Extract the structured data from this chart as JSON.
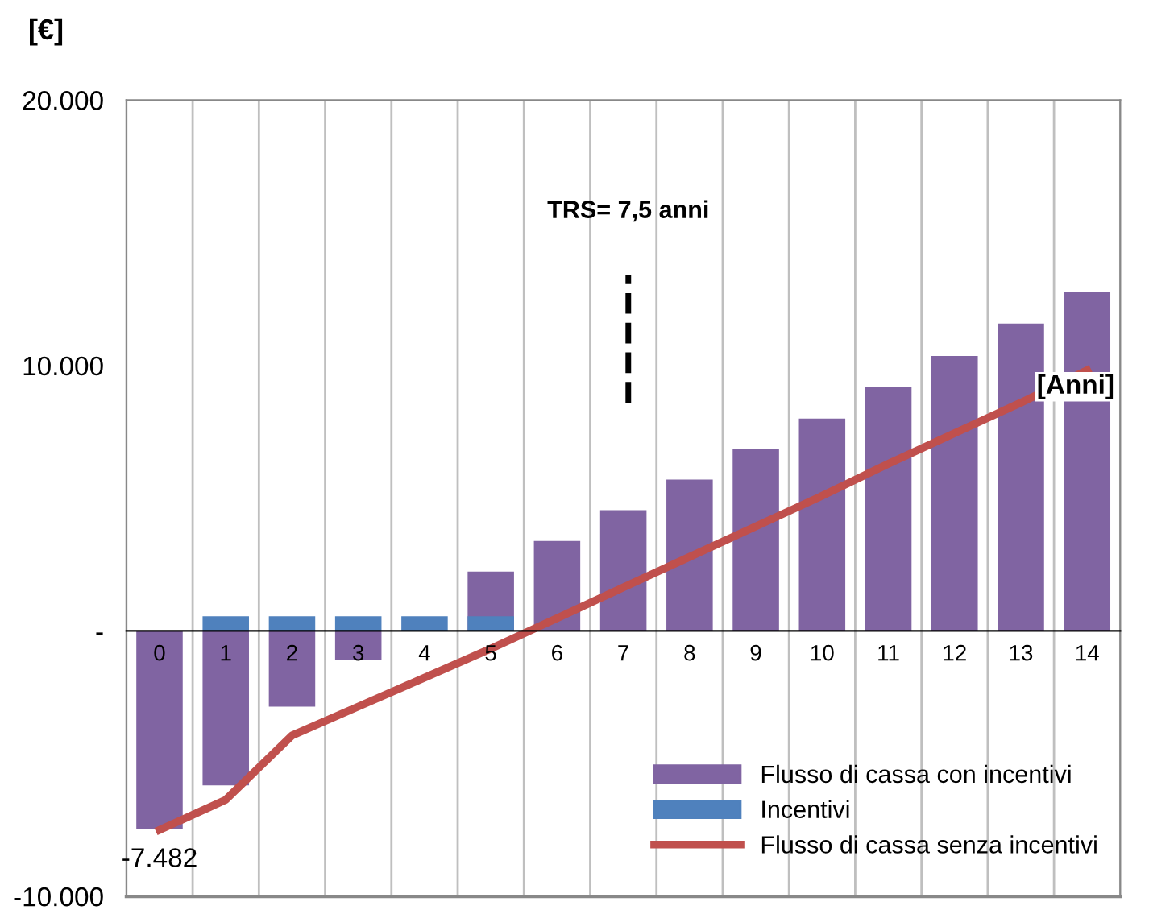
{
  "chart_data": {
    "type": "bar",
    "ylabel": "[€]",
    "categories": [
      "0",
      "1",
      "2",
      "3",
      "4",
      "5",
      "6",
      "7",
      "8",
      "9",
      "10",
      "11",
      "12",
      "13",
      "14"
    ],
    "series": [
      {
        "name": "Flusso di cassa con incentivi",
        "color": "#8064a2",
        "values": [
          -7482,
          -5820,
          -2850,
          -1090,
          0,
          2240,
          3390,
          4550,
          5700,
          6850,
          8000,
          9210,
          10360,
          11580,
          12790
        ],
        "value_labels": [
          "-7.482",
          null,
          null,
          null,
          null,
          null,
          null,
          null,
          null,
          null,
          null,
          null,
          null,
          null,
          null
        ]
      },
      {
        "name": "Incentivi",
        "color": "#4f81bd",
        "values": [
          null,
          550,
          550,
          550,
          550,
          550,
          null,
          null,
          null,
          null,
          null,
          null,
          null,
          null,
          null
        ]
      },
      {
        "name": "Flusso di cassa senza incentivi",
        "type": "line",
        "color": "#c0504d",
        "values": [
          -7500,
          -6360,
          -3940,
          -2850,
          -1760,
          -670,
          480,
          1640,
          2790,
          3940,
          5090,
          6300,
          7450,
          8600,
          9820
        ]
      }
    ],
    "ylim": [
      -10000,
      20000
    ],
    "yticks": [
      {
        "value": -10000,
        "label": "-10.000"
      },
      {
        "value": 0,
        "label": "-"
      },
      {
        "value": 10000,
        "label": "10.000"
      },
      {
        "value": 20000,
        "label": "20.000"
      }
    ],
    "annotations": [
      "TRS= 7,5 anni",
      "[Anni]"
    ],
    "grid": "x",
    "legend": "bottom right"
  }
}
